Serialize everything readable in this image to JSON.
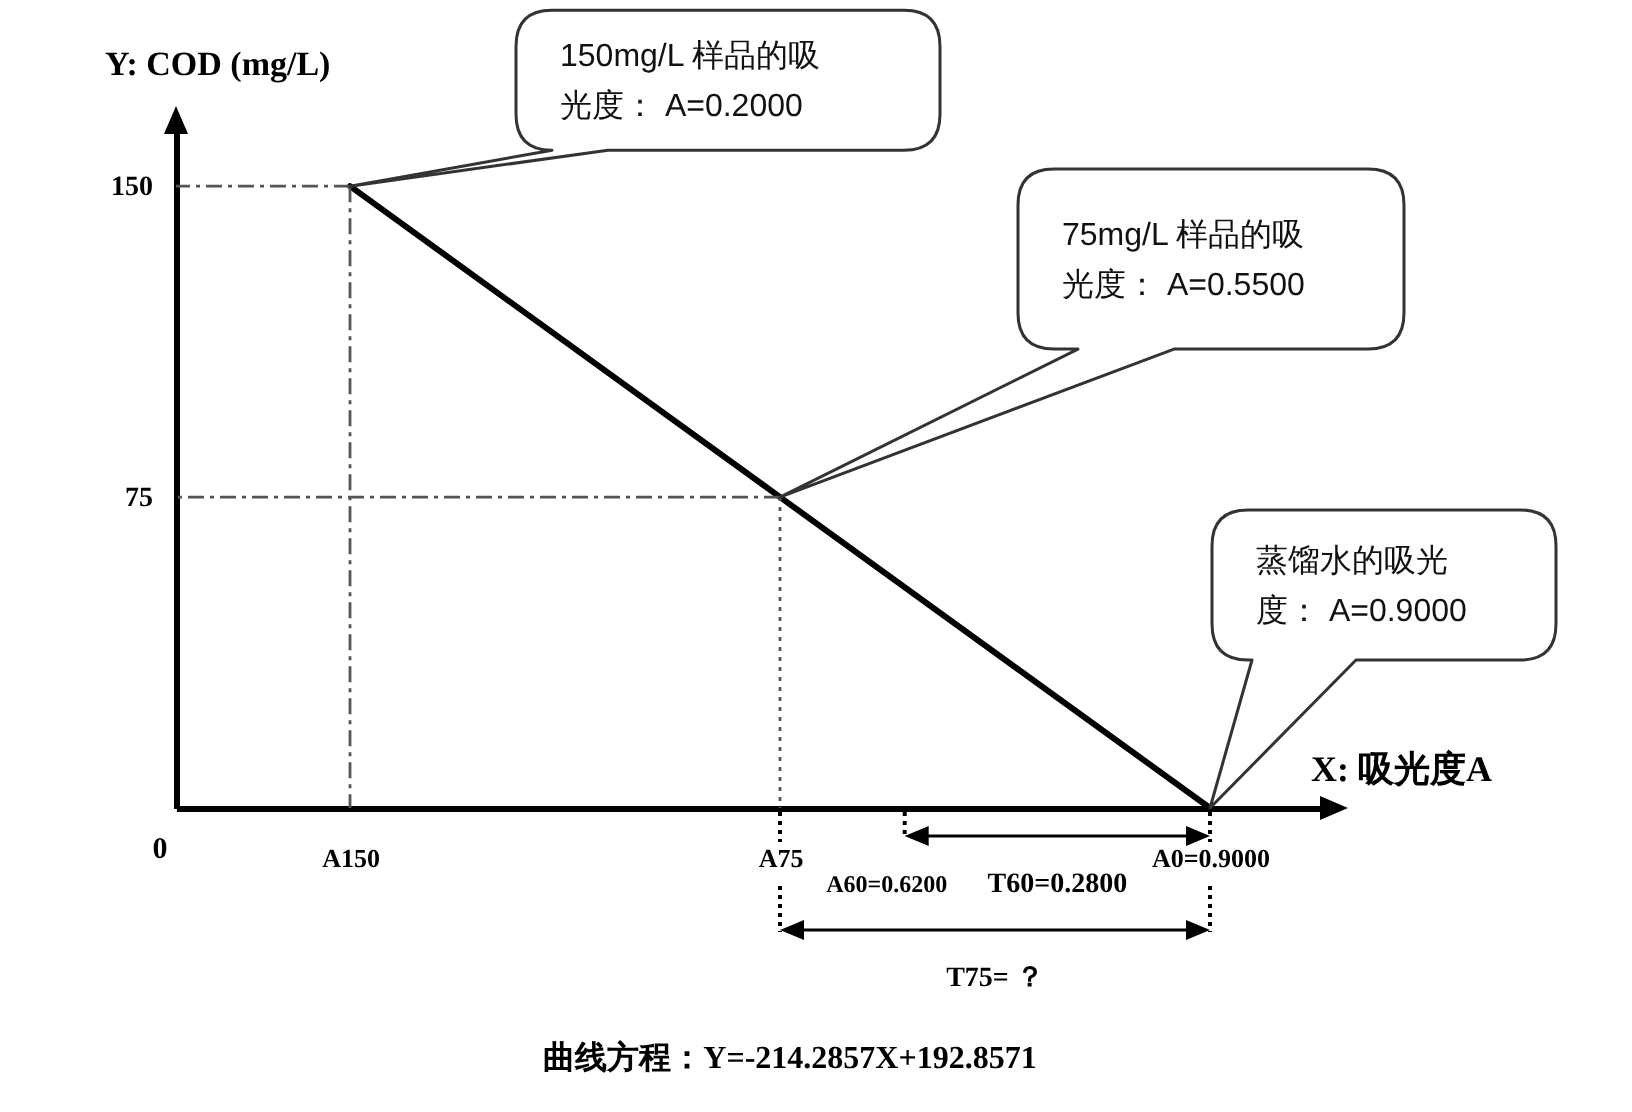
{
  "chart_data": {
    "type": "line",
    "xlabel": "X: 吸光度A",
    "ylabel": "Y: COD (mg/L)",
    "categories": [
      "A150",
      "A75",
      "A0=0.9000"
    ],
    "series": [
      {
        "color": "#000000",
        "values": [
          150,
          75,
          0
        ]
      }
    ],
    "ylim": [
      0,
      165
    ],
    "yticks": [
      75,
      150
    ],
    "line_style": "solid",
    "ref_lines": [
      {
        "axis": "y",
        "value": 150,
        "color": "#555555",
        "line_style": "dashed"
      },
      {
        "axis": "y",
        "value": 75,
        "color": "#555555",
        "line_style": "dashed"
      },
      {
        "axis": "x",
        "value": "A150",
        "color": "#555555",
        "line_style": "dashed"
      },
      {
        "axis": "x",
        "value": "A75",
        "color": "#555555",
        "line_style": "dotted"
      }
    ],
    "annotations": [
      "150mg/L 样品的吸光度： A=0.2000",
      "75mg/L 样品的吸光度： A=0.5500",
      "蒸馏水的吸光度： A=0.9000",
      "0",
      "A60=0.6200",
      "T60=0.2800",
      "T75= ？",
      "曲线方程：Y=-214.2857X+192.8571"
    ]
  }
}
